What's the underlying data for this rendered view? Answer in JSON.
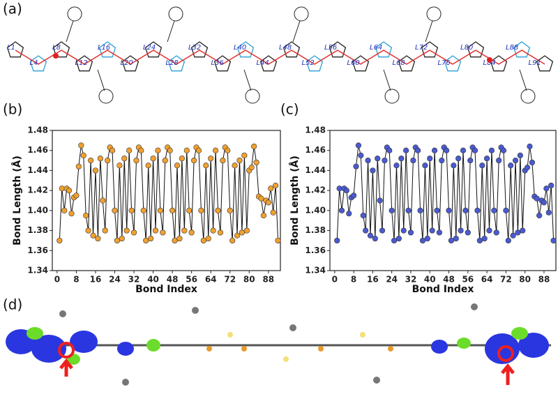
{
  "panels": {
    "a": "(a)",
    "d": "(d)"
  },
  "molecule": {
    "bond_labels": [
      "L1",
      "L4",
      "L8",
      "L12",
      "L16",
      "L20",
      "L24",
      "L28",
      "L32",
      "L36",
      "L40",
      "L44",
      "L48",
      "L52",
      "L56",
      "L60",
      "L64",
      "L68",
      "L72",
      "L76",
      "L80",
      "L84",
      "L88",
      "L91"
    ]
  },
  "chart_data": [
    {
      "type": "line",
      "title": "(b)",
      "xlabel": "Bond Index",
      "ylabel": "Bond Length (Å)",
      "xlim": [
        -2,
        93
      ],
      "xticks": [
        0,
        8,
        16,
        24,
        32,
        40,
        48,
        56,
        64,
        72,
        80,
        88
      ],
      "ylim": [
        1.34,
        1.48
      ],
      "yticks": [
        1.34,
        1.36,
        1.38,
        1.4,
        1.42,
        1.44,
        1.46,
        1.48
      ],
      "x": [
        1,
        2,
        3,
        4,
        5,
        6,
        7,
        8,
        9,
        10,
        11,
        12,
        13,
        14,
        15,
        16,
        17,
        18,
        19,
        20,
        21,
        22,
        23,
        24,
        25,
        26,
        27,
        28,
        29,
        30,
        31,
        32,
        33,
        34,
        35,
        36,
        37,
        38,
        39,
        40,
        41,
        42,
        43,
        44,
        45,
        46,
        47,
        48,
        49,
        50,
        51,
        52,
        53,
        54,
        55,
        56,
        57,
        58,
        59,
        60,
        61,
        62,
        63,
        64,
        65,
        66,
        67,
        68,
        69,
        70,
        71,
        72,
        73,
        74,
        75,
        76,
        77,
        78,
        79,
        80,
        81,
        82,
        83,
        84,
        85,
        86,
        87,
        88,
        89,
        90,
        91,
        92
      ],
      "series": [
        {
          "color": "#f0a030",
          "values": [
            1.37,
            1.422,
            1.4,
            1.422,
            1.42,
            1.397,
            1.413,
            1.415,
            1.444,
            1.465,
            1.455,
            1.395,
            1.38,
            1.45,
            1.375,
            1.44,
            1.372,
            1.452,
            1.41,
            1.38,
            1.45,
            1.463,
            1.46,
            1.4,
            1.37,
            1.445,
            1.372,
            1.452,
            1.38,
            1.46,
            1.4,
            1.378,
            1.45,
            1.463,
            1.46,
            1.4,
            1.37,
            1.445,
            1.372,
            1.452,
            1.38,
            1.46,
            1.4,
            1.378,
            1.45,
            1.463,
            1.46,
            1.4,
            1.37,
            1.445,
            1.372,
            1.452,
            1.38,
            1.46,
            1.4,
            1.378,
            1.45,
            1.463,
            1.46,
            1.4,
            1.37,
            1.445,
            1.372,
            1.452,
            1.38,
            1.46,
            1.4,
            1.378,
            1.45,
            1.463,
            1.46,
            1.4,
            1.37,
            1.445,
            1.375,
            1.45,
            1.378,
            1.455,
            1.38,
            1.44,
            1.443,
            1.464,
            1.448,
            1.414,
            1.412,
            1.395,
            1.41,
            1.408,
            1.422,
            1.398,
            1.425,
            1.37
          ]
        }
      ]
    },
    {
      "type": "line",
      "title": "(c)",
      "xlabel": "Bond Index",
      "ylabel": "Bond Length (Å)",
      "xlim": [
        -2,
        93
      ],
      "xticks": [
        0,
        8,
        16,
        24,
        32,
        40,
        48,
        56,
        64,
        72,
        80,
        88
      ],
      "ylim": [
        1.34,
        1.48
      ],
      "yticks": [
        1.34,
        1.36,
        1.38,
        1.4,
        1.42,
        1.44,
        1.46,
        1.48
      ],
      "x": [
        1,
        2,
        3,
        4,
        5,
        6,
        7,
        8,
        9,
        10,
        11,
        12,
        13,
        14,
        15,
        16,
        17,
        18,
        19,
        20,
        21,
        22,
        23,
        24,
        25,
        26,
        27,
        28,
        29,
        30,
        31,
        32,
        33,
        34,
        35,
        36,
        37,
        38,
        39,
        40,
        41,
        42,
        43,
        44,
        45,
        46,
        47,
        48,
        49,
        50,
        51,
        52,
        53,
        54,
        55,
        56,
        57,
        58,
        59,
        60,
        61,
        62,
        63,
        64,
        65,
        66,
        67,
        68,
        69,
        70,
        71,
        72,
        73,
        74,
        75,
        76,
        77,
        78,
        79,
        80,
        81,
        82,
        83,
        84,
        85,
        86,
        87,
        88,
        89,
        90,
        91,
        92
      ],
      "series": [
        {
          "color": "#4a5ad0",
          "values": [
            1.37,
            1.422,
            1.4,
            1.422,
            1.42,
            1.397,
            1.413,
            1.415,
            1.444,
            1.465,
            1.455,
            1.395,
            1.38,
            1.45,
            1.375,
            1.44,
            1.372,
            1.452,
            1.41,
            1.38,
            1.45,
            1.463,
            1.46,
            1.4,
            1.37,
            1.445,
            1.372,
            1.452,
            1.38,
            1.46,
            1.4,
            1.378,
            1.45,
            1.463,
            1.46,
            1.4,
            1.37,
            1.445,
            1.372,
            1.452,
            1.38,
            1.46,
            1.4,
            1.378,
            1.45,
            1.463,
            1.46,
            1.4,
            1.37,
            1.445,
            1.372,
            1.452,
            1.38,
            1.46,
            1.4,
            1.378,
            1.45,
            1.463,
            1.46,
            1.4,
            1.37,
            1.445,
            1.372,
            1.452,
            1.38,
            1.46,
            1.4,
            1.378,
            1.45,
            1.463,
            1.46,
            1.4,
            1.37,
            1.445,
            1.375,
            1.45,
            1.378,
            1.455,
            1.38,
            1.44,
            1.443,
            1.464,
            1.448,
            1.414,
            1.412,
            1.395,
            1.41,
            1.408,
            1.422,
            1.398,
            1.425,
            1.37
          ]
        }
      ]
    }
  ]
}
